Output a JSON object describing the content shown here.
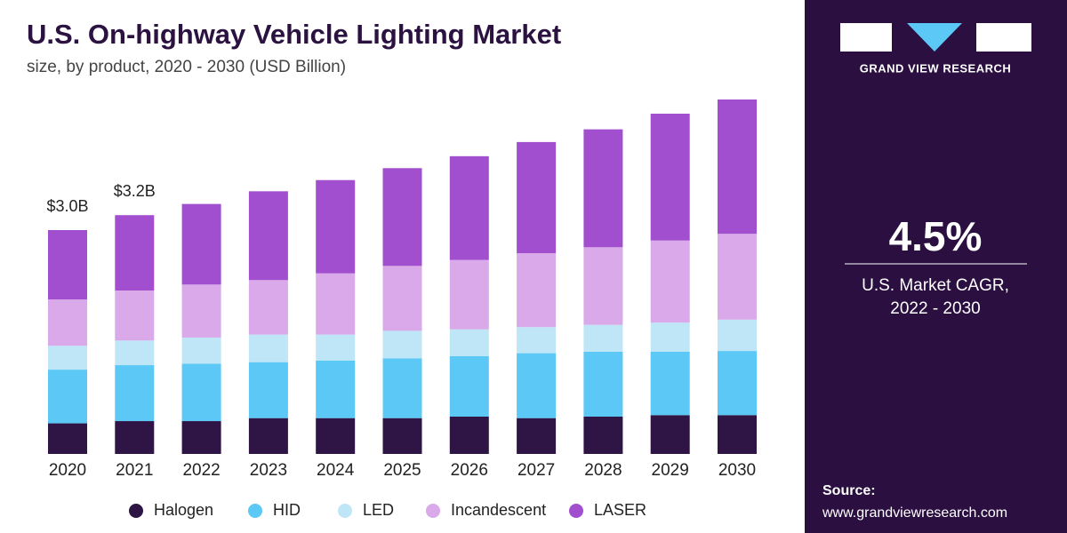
{
  "chart_data": {
    "type": "bar",
    "stacked": true,
    "title": "U.S. On-highway Vehicle Lighting Market",
    "subtitle": "size, by product, 2020 - 2030 (USD Billion)",
    "categories": [
      "2020",
      "2021",
      "2022",
      "2023",
      "2024",
      "2025",
      "2026",
      "2027",
      "2028",
      "2029",
      "2030"
    ],
    "series": [
      {
        "name": "Halogen",
        "color": "#2e1545",
        "values": [
          0.41,
          0.44,
          0.44,
          0.48,
          0.48,
          0.48,
          0.5,
          0.48,
          0.5,
          0.52,
          0.52
        ]
      },
      {
        "name": "HID",
        "color": "#5bc8f5",
        "values": [
          0.72,
          0.75,
          0.77,
          0.75,
          0.77,
          0.8,
          0.81,
          0.87,
          0.87,
          0.85,
          0.86
        ]
      },
      {
        "name": "LED",
        "color": "#bfe6f7",
        "values": [
          0.32,
          0.33,
          0.35,
          0.37,
          0.35,
          0.37,
          0.36,
          0.35,
          0.36,
          0.39,
          0.42
        ]
      },
      {
        "name": "Incandescent",
        "color": "#d9a9e9",
        "values": [
          0.62,
          0.67,
          0.71,
          0.73,
          0.82,
          0.87,
          0.93,
          0.99,
          1.04,
          1.1,
          1.15
        ]
      },
      {
        "name": "LASER",
        "color": "#a24fcf",
        "values": [
          0.93,
          1.01,
          1.08,
          1.19,
          1.25,
          1.31,
          1.39,
          1.49,
          1.58,
          1.7,
          1.8
        ]
      }
    ],
    "annotations": [
      {
        "text": "$3.0B",
        "category": "2020",
        "value": 3.0
      },
      {
        "text": "$3.2B",
        "category": "2021",
        "value": 3.2
      }
    ]
  },
  "sidebar": {
    "brand": "GRAND VIEW RESEARCH",
    "cagr": "4.5%",
    "cagr_label": [
      "U.S. Market CAGR,",
      "2022 - 2030"
    ],
    "source_label": "Source:",
    "source_url": "www.grandviewresearch.com"
  }
}
